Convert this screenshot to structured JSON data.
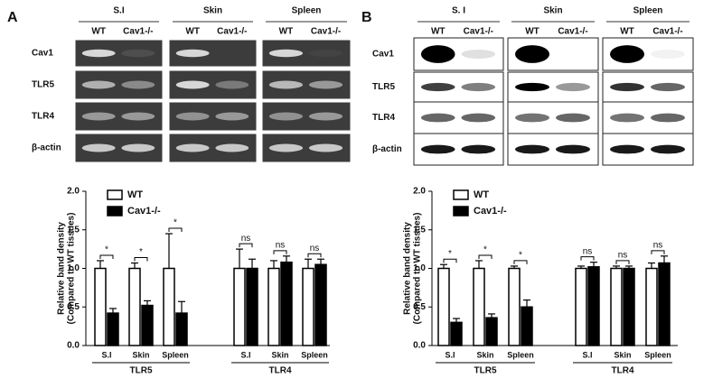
{
  "panels": [
    {
      "label": "A",
      "tissues": [
        "S.I",
        "Skin",
        "Spleen"
      ],
      "lanes": [
        "WT",
        "Cav1-/-"
      ],
      "rows": [
        "Cav1",
        "TLR5",
        "TLR4",
        "β-actin"
      ]
    },
    {
      "label": "B",
      "tissues": [
        "S. I",
        "Skin",
        "Spleen"
      ],
      "lanes": [
        "WT",
        "Cav1-/-"
      ],
      "rows": [
        "Cav1",
        "TLR5",
        "TLR4",
        "β-actin"
      ]
    }
  ],
  "chart_data": [
    {
      "type": "bar",
      "ylabel": [
        "Relative band density",
        "(Compared to WT tissues)"
      ],
      "categories": [
        "S.I",
        "Skin",
        "Spleen",
        "S.I",
        "Skin",
        "Spleen"
      ],
      "groups": [
        "TLR5",
        "TLR4"
      ],
      "series": [
        {
          "name": "WT",
          "color": "#ffffff",
          "values": [
            1.0,
            1.0,
            1.0,
            1.0,
            1.0,
            1.0
          ],
          "errors": [
            0.1,
            0.07,
            0.45,
            0.25,
            0.1,
            0.12
          ]
        },
        {
          "name": "Cav1-/-",
          "color": "#000000",
          "values": [
            0.42,
            0.52,
            0.42,
            1.0,
            1.08,
            1.05
          ],
          "errors": [
            0.06,
            0.06,
            0.15,
            0.12,
            0.08,
            0.07
          ]
        }
      ],
      "annotations": [
        "*",
        "*",
        "*",
        "ns",
        "ns",
        "ns"
      ],
      "ylim": [
        0,
        2.0
      ],
      "yticks": [
        {
          "value": 0,
          "label": "0.0"
        },
        0.5,
        {
          "value": 1,
          "label": "1.0"
        },
        1.5,
        {
          "value": 2,
          "label": "2.0"
        }
      ]
    },
    {
      "type": "bar",
      "ylabel": [
        "Relative band density",
        "(Compared to WT tissues)"
      ],
      "categories": [
        "S.I",
        "Skin",
        "Spleen",
        "S.I",
        "Skin",
        "Spleen"
      ],
      "groups": [
        "TLR5",
        "TLR4"
      ],
      "series": [
        {
          "name": "WT",
          "color": "#ffffff",
          "values": [
            1.0,
            1.0,
            1.0,
            1.0,
            1.0,
            1.0
          ],
          "errors": [
            0.05,
            0.1,
            0.03,
            0.03,
            0.03,
            0.07
          ]
        },
        {
          "name": "Cav1-/-",
          "color": "#000000",
          "values": [
            0.3,
            0.36,
            0.5,
            1.02,
            1.0,
            1.07
          ],
          "errors": [
            0.05,
            0.05,
            0.09,
            0.06,
            0.03,
            0.09
          ]
        }
      ],
      "annotations": [
        "*",
        "*",
        "*",
        "ns",
        "ns",
        "ns"
      ],
      "ylim": [
        0,
        2.0
      ],
      "yticks": [
        {
          "value": 0,
          "label": "0.0"
        },
        0.5,
        {
          "value": 1,
          "label": "1.0"
        },
        1.5,
        {
          "value": 2,
          "label": "2.0"
        }
      ]
    }
  ]
}
